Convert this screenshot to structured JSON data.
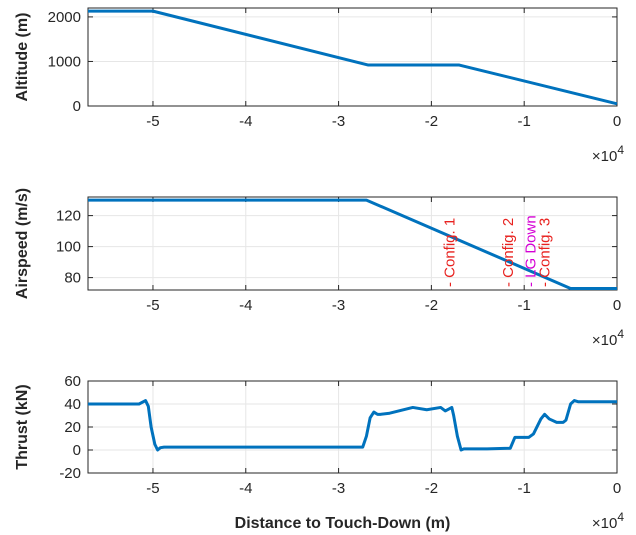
{
  "colors": {
    "line": "#0072BD",
    "grid": "#e6e6e6",
    "axis": "#262626",
    "config": "#e8221f",
    "gear": "#d400d4"
  },
  "chart_data": [
    {
      "type": "line",
      "ylabel": "Altitude (m)",
      "xlabel": "",
      "xlim": [
        -5.7,
        0
      ],
      "ylim": [
        0,
        2200
      ],
      "xticks": [
        -5,
        -4,
        -3,
        -2,
        -1,
        0
      ],
      "xtick_labels": [
        "-5",
        "-4",
        "-3",
        "-2",
        "-1",
        "0"
      ],
      "yticks": [
        0,
        1000,
        2000
      ],
      "ytick_labels": [
        "0",
        "1000",
        "2000"
      ],
      "x_multiplier": "×10",
      "x_multiplier_exp": "4",
      "grid": true,
      "series": [
        {
          "x": [
            -5.7,
            -5.0,
            -2.68,
            -1.7,
            0.0
          ],
          "y": [
            2130,
            2130,
            920,
            920,
            50
          ]
        }
      ]
    },
    {
      "type": "line",
      "ylabel": "Airspeed (m/s)",
      "xlabel": "",
      "xlim": [
        -5.7,
        0
      ],
      "ylim": [
        72,
        132
      ],
      "xticks": [
        -5,
        -4,
        -3,
        -2,
        -1,
        0
      ],
      "xtick_labels": [
        "-5",
        "-4",
        "-3",
        "-2",
        "-1",
        "0"
      ],
      "yticks": [
        80,
        100,
        120
      ],
      "ytick_labels": [
        "80",
        "100",
        "120"
      ],
      "x_multiplier": "×10",
      "x_multiplier_exp": "4",
      "grid": true,
      "series": [
        {
          "x": [
            -5.7,
            -2.7,
            -0.5,
            0.0
          ],
          "y": [
            130,
            130,
            73,
            73
          ]
        }
      ],
      "annotations": [
        {
          "text": "- Config. 1",
          "x": -1.75,
          "color": "config"
        },
        {
          "text": "- Config. 2",
          "x": -1.12,
          "color": "config"
        },
        {
          "text": "- LG Down",
          "x": -0.88,
          "color": "gear"
        },
        {
          "text": "- Config. 3",
          "x": -0.73,
          "color": "config"
        }
      ]
    },
    {
      "type": "line",
      "ylabel": "Thrust (kN)",
      "xlabel": "Distance to Touch-Down (m)",
      "xlim": [
        -5.7,
        0
      ],
      "ylim": [
        -20,
        60
      ],
      "xticks": [
        -5,
        -4,
        -3,
        -2,
        -1,
        0
      ],
      "xtick_labels": [
        "-5",
        "-4",
        "-3",
        "-2",
        "-1",
        "0"
      ],
      "yticks": [
        -20,
        0,
        20,
        40,
        60
      ],
      "ytick_labels": [
        "-20",
        "0",
        "20",
        "40",
        "60"
      ],
      "x_multiplier": "×10",
      "x_multiplier_exp": "4",
      "grid": true,
      "series": [
        {
          "x": [
            -5.7,
            -5.15,
            -5.08,
            -5.05,
            -5.02,
            -4.98,
            -4.95,
            -4.92,
            -4.88,
            -4.8,
            -3.0,
            -2.74,
            -2.7,
            -2.66,
            -2.62,
            -2.58,
            -2.55,
            -2.45,
            -2.2,
            -2.05,
            -1.9,
            -1.85,
            -1.78,
            -1.76,
            -1.72,
            -1.68,
            -1.65,
            -1.6,
            -1.4,
            -1.15,
            -1.1,
            -1.05,
            -0.95,
            -0.9,
            -0.82,
            -0.78,
            -0.73,
            -0.65,
            -0.58,
            -0.55,
            -0.5,
            -0.46,
            -0.42,
            0.0
          ],
          "y": [
            40,
            40,
            43,
            38,
            20,
            5,
            0,
            2,
            2.5,
            2.5,
            2.5,
            2.5,
            12,
            28,
            33,
            31,
            31,
            32,
            37,
            35,
            37,
            34,
            37,
            30,
            12,
            0,
            1,
            1,
            1,
            1.5,
            11,
            11,
            11,
            14,
            27,
            31,
            27,
            24,
            24,
            26,
            40,
            43,
            42,
            42
          ]
        }
      ]
    }
  ]
}
